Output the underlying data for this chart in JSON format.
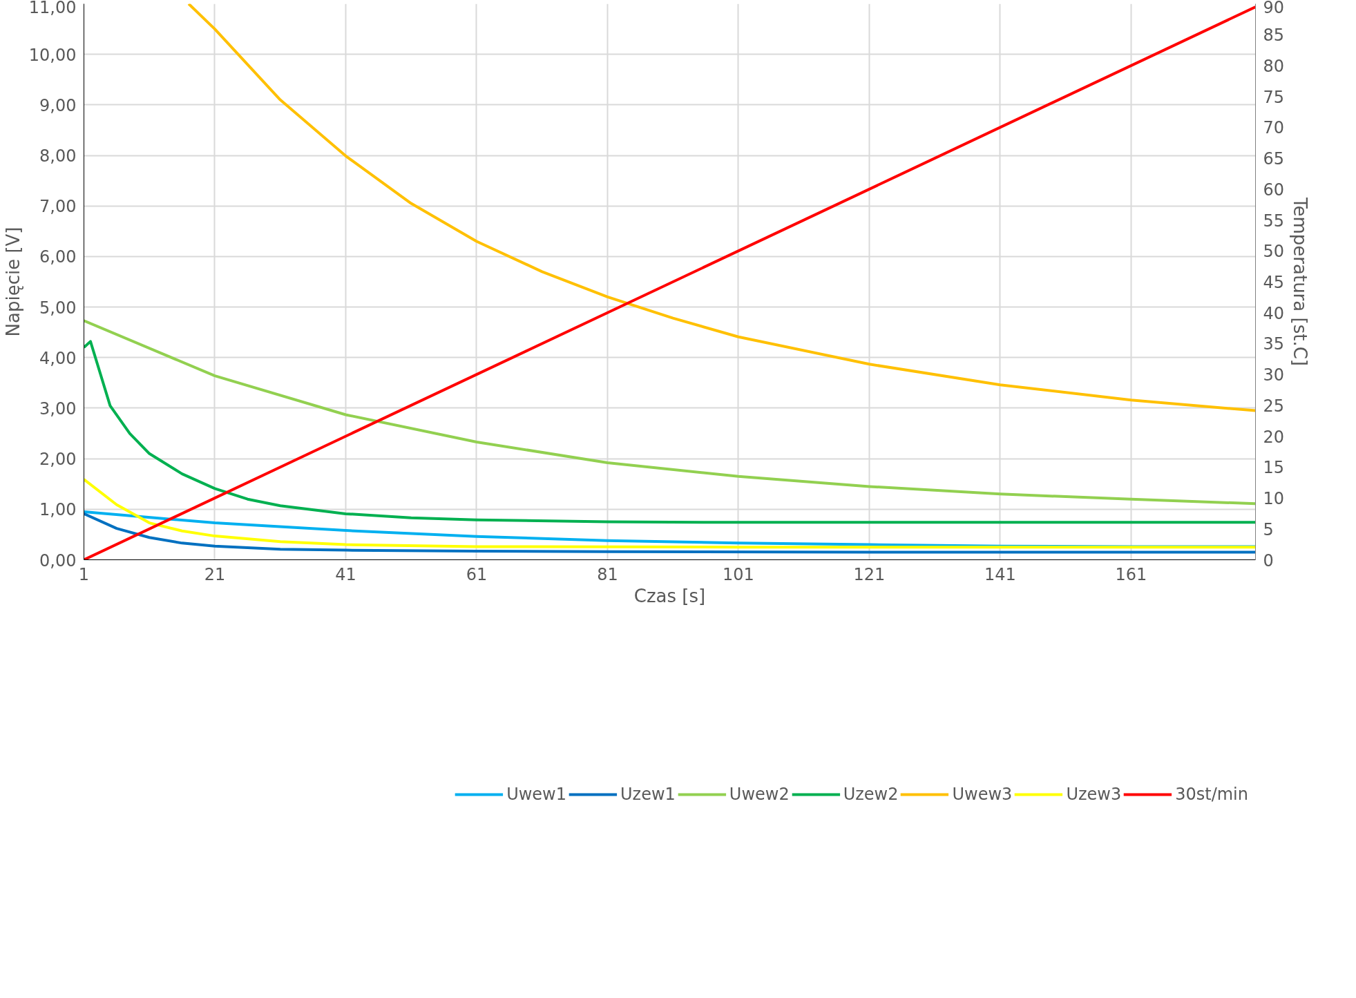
{
  "chart_data": {
    "type": "line",
    "xlabel": "Czas [s]",
    "ylabel": "Napięcie [V]",
    "y2label": "Temperatura [st.C]",
    "xlim": [
      1,
      180
    ],
    "xticks": [
      1,
      21,
      41,
      61,
      81,
      101,
      121,
      141,
      161
    ],
    "ylim": [
      0,
      11
    ],
    "yticks": [
      {
        "value": 0,
        "label": "0,00"
      },
      {
        "value": 1,
        "label": "1,00"
      },
      {
        "value": 2,
        "label": "2,00"
      },
      {
        "value": 3,
        "label": "3,00"
      },
      {
        "value": 4,
        "label": "4,00"
      },
      {
        "value": 5,
        "label": "5,00"
      },
      {
        "value": 6,
        "label": "6,00"
      },
      {
        "value": 7,
        "label": "7,00"
      },
      {
        "value": 8,
        "label": "8,00"
      },
      {
        "value": 9,
        "label": "9,00"
      },
      {
        "value": 10,
        "label": "10,00"
      },
      {
        "value": 11,
        "label": "11,00"
      }
    ],
    "y2lim": [
      0,
      90
    ],
    "y2ticks": [
      0,
      5,
      10,
      15,
      20,
      25,
      30,
      35,
      40,
      45,
      50,
      55,
      60,
      65,
      70,
      75,
      80,
      85,
      90
    ],
    "grid": true,
    "legend": "bottom",
    "line_style": "solid",
    "marker": "none",
    "series": [
      {
        "name": "Uwew1",
        "color": "#00b0f0",
        "x": [
          1,
          21,
          41,
          61,
          81,
          101,
          121,
          141,
          161,
          180
        ],
        "values": [
          0.95,
          0.73,
          0.58,
          0.46,
          0.38,
          0.33,
          0.3,
          0.27,
          0.26,
          0.26
        ]
      },
      {
        "name": "Uzew1",
        "color": "#0070c0",
        "x": [
          1,
          6,
          11,
          16,
          21,
          31,
          41,
          61,
          81,
          121,
          180
        ],
        "values": [
          0.91,
          0.62,
          0.44,
          0.33,
          0.27,
          0.21,
          0.19,
          0.17,
          0.16,
          0.15,
          0.15
        ]
      },
      {
        "name": "Uwew2",
        "color": "#92d050",
        "x": [
          1,
          21,
          41,
          61,
          81,
          101,
          121,
          141,
          161,
          180
        ],
        "values": [
          4.73,
          3.64,
          2.87,
          2.33,
          1.92,
          1.65,
          1.45,
          1.3,
          1.2,
          1.11
        ]
      },
      {
        "name": "Uzew2",
        "color": "#00b050",
        "x": [
          1,
          2,
          5,
          8,
          11,
          16,
          21,
          26,
          31,
          41,
          51,
          61,
          81,
          101,
          180
        ],
        "values": [
          4.2,
          4.32,
          3.05,
          2.5,
          2.1,
          1.7,
          1.41,
          1.2,
          1.07,
          0.91,
          0.83,
          0.79,
          0.75,
          0.74,
          0.74
        ]
      },
      {
        "name": "Uwew3",
        "color": "#ffc000",
        "x": [
          17,
          21,
          31,
          41,
          51,
          61,
          71,
          81,
          91,
          101,
          121,
          141,
          161,
          180
        ],
        "values": [
          11.0,
          10.5,
          9.1,
          7.99,
          7.05,
          6.3,
          5.7,
          5.2,
          4.78,
          4.41,
          3.87,
          3.46,
          3.16,
          2.95
        ]
      },
      {
        "name": "Uzew3",
        "color": "#ffff00",
        "x": [
          1,
          6,
          11,
          16,
          21,
          31,
          41,
          61,
          101,
          180
        ],
        "values": [
          1.59,
          1.09,
          0.73,
          0.57,
          0.47,
          0.36,
          0.3,
          0.26,
          0.25,
          0.25
        ]
      },
      {
        "name": "30st/min",
        "color": "#ff0000",
        "axis": "y2",
        "x": [
          1,
          180
        ],
        "values": [
          0,
          89.5
        ]
      }
    ]
  }
}
